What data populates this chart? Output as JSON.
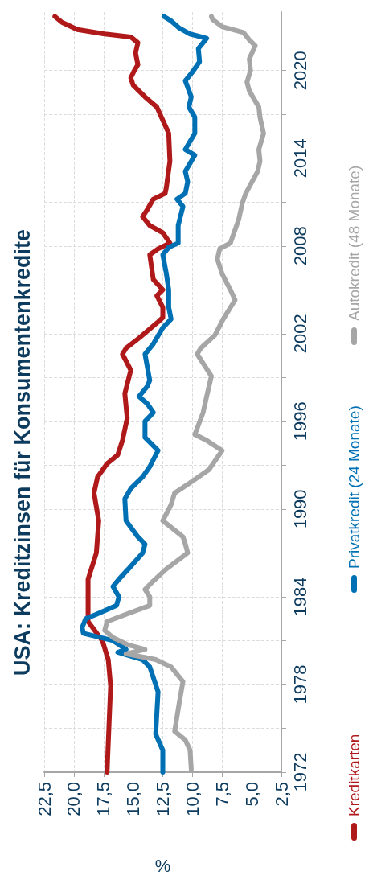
{
  "chart_data": {
    "type": "line",
    "title": "USA: Kreditzinsen für Konsumentenkredite",
    "xlabel": "%",
    "ylim": [
      1972,
      2024
    ],
    "yticks": [
      1972,
      {
        "value": 1975,
        "label": null
      },
      1978,
      {
        "value": 1981,
        "label": null
      },
      1984,
      {
        "value": 1987,
        "label": null
      },
      1990,
      {
        "value": 1993,
        "label": null
      },
      1996,
      {
        "value": 1999,
        "label": null
      },
      2002,
      {
        "value": 2005,
        "label": null
      },
      2008,
      {
        "value": 2011,
        "label": null
      },
      2014,
      {
        "value": 2017,
        "label": null
      },
      2020,
      {
        "value": 2023,
        "label": null
      }
    ],
    "xlim": [
      22.5,
      2.5
    ],
    "xticks": [
      {
        "value": 22.5,
        "label": "22,5"
      },
      {
        "value": 20,
        "label": "20,0"
      },
      {
        "value": 17.5,
        "label": "17,5"
      },
      {
        "value": 15,
        "label": "15,0"
      },
      {
        "value": 12.5,
        "label": "12,5"
      },
      {
        "value": 10,
        "label": "10,0"
      },
      {
        "value": 7.5,
        "label": "7,5"
      },
      {
        "value": 5,
        "label": "5,0"
      },
      {
        "value": 2.5,
        "label": "2,5"
      }
    ],
    "grid": true,
    "legend": "right",
    "marker": "none",
    "line_style": "solid",
    "series": [
      {
        "name": "Kreditkarten",
        "color": "#b0191a",
        "values": [
          1972,
          1977.9,
          1979.7,
          1981,
          1982.3,
          1983.4,
          1985.2,
          1987,
          1989.2,
          1991.1,
          1992.2,
          1993.1,
          1993.7,
          1994.7,
          1996.2,
          1997.9,
          1999.5,
          2000.6,
          2001,
          2001.7,
          2002.8,
          2003.1,
          2003.8,
          2004.6,
          2005,
          2005.7,
          2007.4,
          2007.8,
          2008.2,
          2008.9,
          2009.4,
          2010,
          2010.5,
          2011.2,
          2011.6,
          2012,
          2013.8,
          2015.7,
          2016.6,
          2017.5,
          2018.2,
          2019,
          2019.5,
          2020,
          2020.4,
          2021.2,
          2021.9,
          2022.3,
          2022.5,
          2022.8,
          2023.3,
          2023.7
        ],
        "x": [
          17.2,
          16.9,
          17.1,
          17.6,
          18.8,
          18.8,
          18.8,
          18.1,
          17.9,
          18.3,
          18.0,
          17.2,
          16.3,
          15.9,
          15.5,
          15.7,
          15.2,
          15.9,
          15.6,
          14.5,
          12.9,
          12.5,
          12.5,
          13.0,
          12.5,
          13.3,
          13.6,
          12.9,
          11.9,
          12.5,
          13.6,
          14.2,
          13.8,
          13.3,
          12.3,
          12.2,
          11.9,
          12.0,
          12.5,
          13.0,
          14.0,
          15.0,
          15.2,
          14.9,
          14.6,
          14.8,
          14.6,
          15.2,
          17.4,
          19.7,
          21.0,
          21.6
        ]
      },
      {
        "name": "Privatkredit (24 Monate)",
        "color": "#0070b4",
        "values": [
          1972,
          1973.5,
          1974.6,
          1977.5,
          1979.2,
          1979.7,
          1980.2,
          1980.4,
          1981,
          1981.5,
          1981.9,
          1982.5,
          1982.8,
          1983.4,
          1984,
          1984.7,
          1985.2,
          1985.9,
          1987,
          1987.6,
          1988.1,
          1989.2,
          1990.7,
          1991.4,
          1992.2,
          1992.9,
          1994,
          1994.9,
          1996,
          1996.6,
          1997.2,
          1997.7,
          1998.4,
          1998.8,
          2000.6,
          2001.3,
          2002.4,
          2003,
          2003.8,
          2005,
          2006.1,
          2007.4,
          2007.9,
          2008.2,
          2009.4,
          2010.7,
          2011.2,
          2011.6,
          2012.4,
          2013.1,
          2014.2,
          2014.6,
          2015.7,
          2016.8,
          2017.5,
          2018.2,
          2019.3,
          2019.9,
          2020.6,
          2021.5,
          2022.2,
          2022.5,
          2022.9,
          2023.4,
          2023.7
        ],
        "x": [
          12.5,
          12.5,
          13.1,
          12.9,
          13.6,
          14.2,
          16.3,
          15.6,
          16.7,
          19.2,
          19.3,
          19.0,
          18.1,
          16.4,
          16.2,
          16.7,
          16.2,
          15.4,
          14.2,
          14.0,
          14.6,
          15.6,
          15.7,
          15.2,
          14.2,
          13.6,
          12.9,
          14.0,
          14.0,
          13.3,
          13.8,
          14.5,
          13.8,
          13.6,
          14.0,
          13.3,
          12.5,
          11.8,
          12.0,
          12.0,
          12.2,
          12.5,
          12.0,
          11.2,
          11.2,
          10.8,
          11.3,
          10.6,
          10.4,
          10.6,
          9.8,
          10.6,
          9.8,
          9.8,
          10.3,
          10.1,
          10.6,
          10.0,
          9.4,
          9.5,
          8.8,
          10.2,
          11.1,
          11.8,
          12.4
        ]
      },
      {
        "name": "Autokredit (48 Monate)",
        "color": "#a6a6a6",
        "values": [
          1972.2,
          1973.5,
          1974.2,
          1974.8,
          1976.8,
          1978.2,
          1979.2,
          1979.7,
          1980.1,
          1980.4,
          1980.7,
          1981.2,
          1981.7,
          1982.3,
          1982.8,
          1983.4,
          1984,
          1984.5,
          1985,
          1985.9,
          1987,
          1987.6,
          1988.1,
          1989.2,
          1990.3,
          1991.1,
          1991.8,
          1992.7,
          1994,
          1994.7,
          1995.1,
          1996.6,
          1997.7,
          1998.4,
          1999.1,
          2000.6,
          2001,
          2001.9,
          2003,
          2004.3,
          2005,
          2006.1,
          2007.1,
          2007.8,
          2008.2,
          2009.8,
          2010.9,
          2011.6,
          2013.1,
          2013.8,
          2014.6,
          2015.7,
          2016.8,
          2017.5,
          2018.6,
          2019.2,
          2020,
          2020.8,
          2021.7,
          2022.1,
          2022.6,
          2023,
          2023.5,
          2023.7
        ],
        "x": [
          10.1,
          10.2,
          10.6,
          11.5,
          11.1,
          10.8,
          11.8,
          13.1,
          15.6,
          14.0,
          15.4,
          16.7,
          17.4,
          17.2,
          15.6,
          13.6,
          13.6,
          14.0,
          13.4,
          12.2,
          10.4,
          10.6,
          10.8,
          12.5,
          11.8,
          11.5,
          10.2,
          8.6,
          7.5,
          8.8,
          9.8,
          9.1,
          8.8,
          8.6,
          8.4,
          9.6,
          9.3,
          8.1,
          7.4,
          6.4,
          6.8,
          7.5,
          7.9,
          7.7,
          6.8,
          6.1,
          5.8,
          5.5,
          4.5,
          4.3,
          4.4,
          4.0,
          4.3,
          4.4,
          5.2,
          5.4,
          5.1,
          5.2,
          4.7,
          5.2,
          5.7,
          7.5,
          8.3,
          8.4
        ]
      }
    ]
  }
}
